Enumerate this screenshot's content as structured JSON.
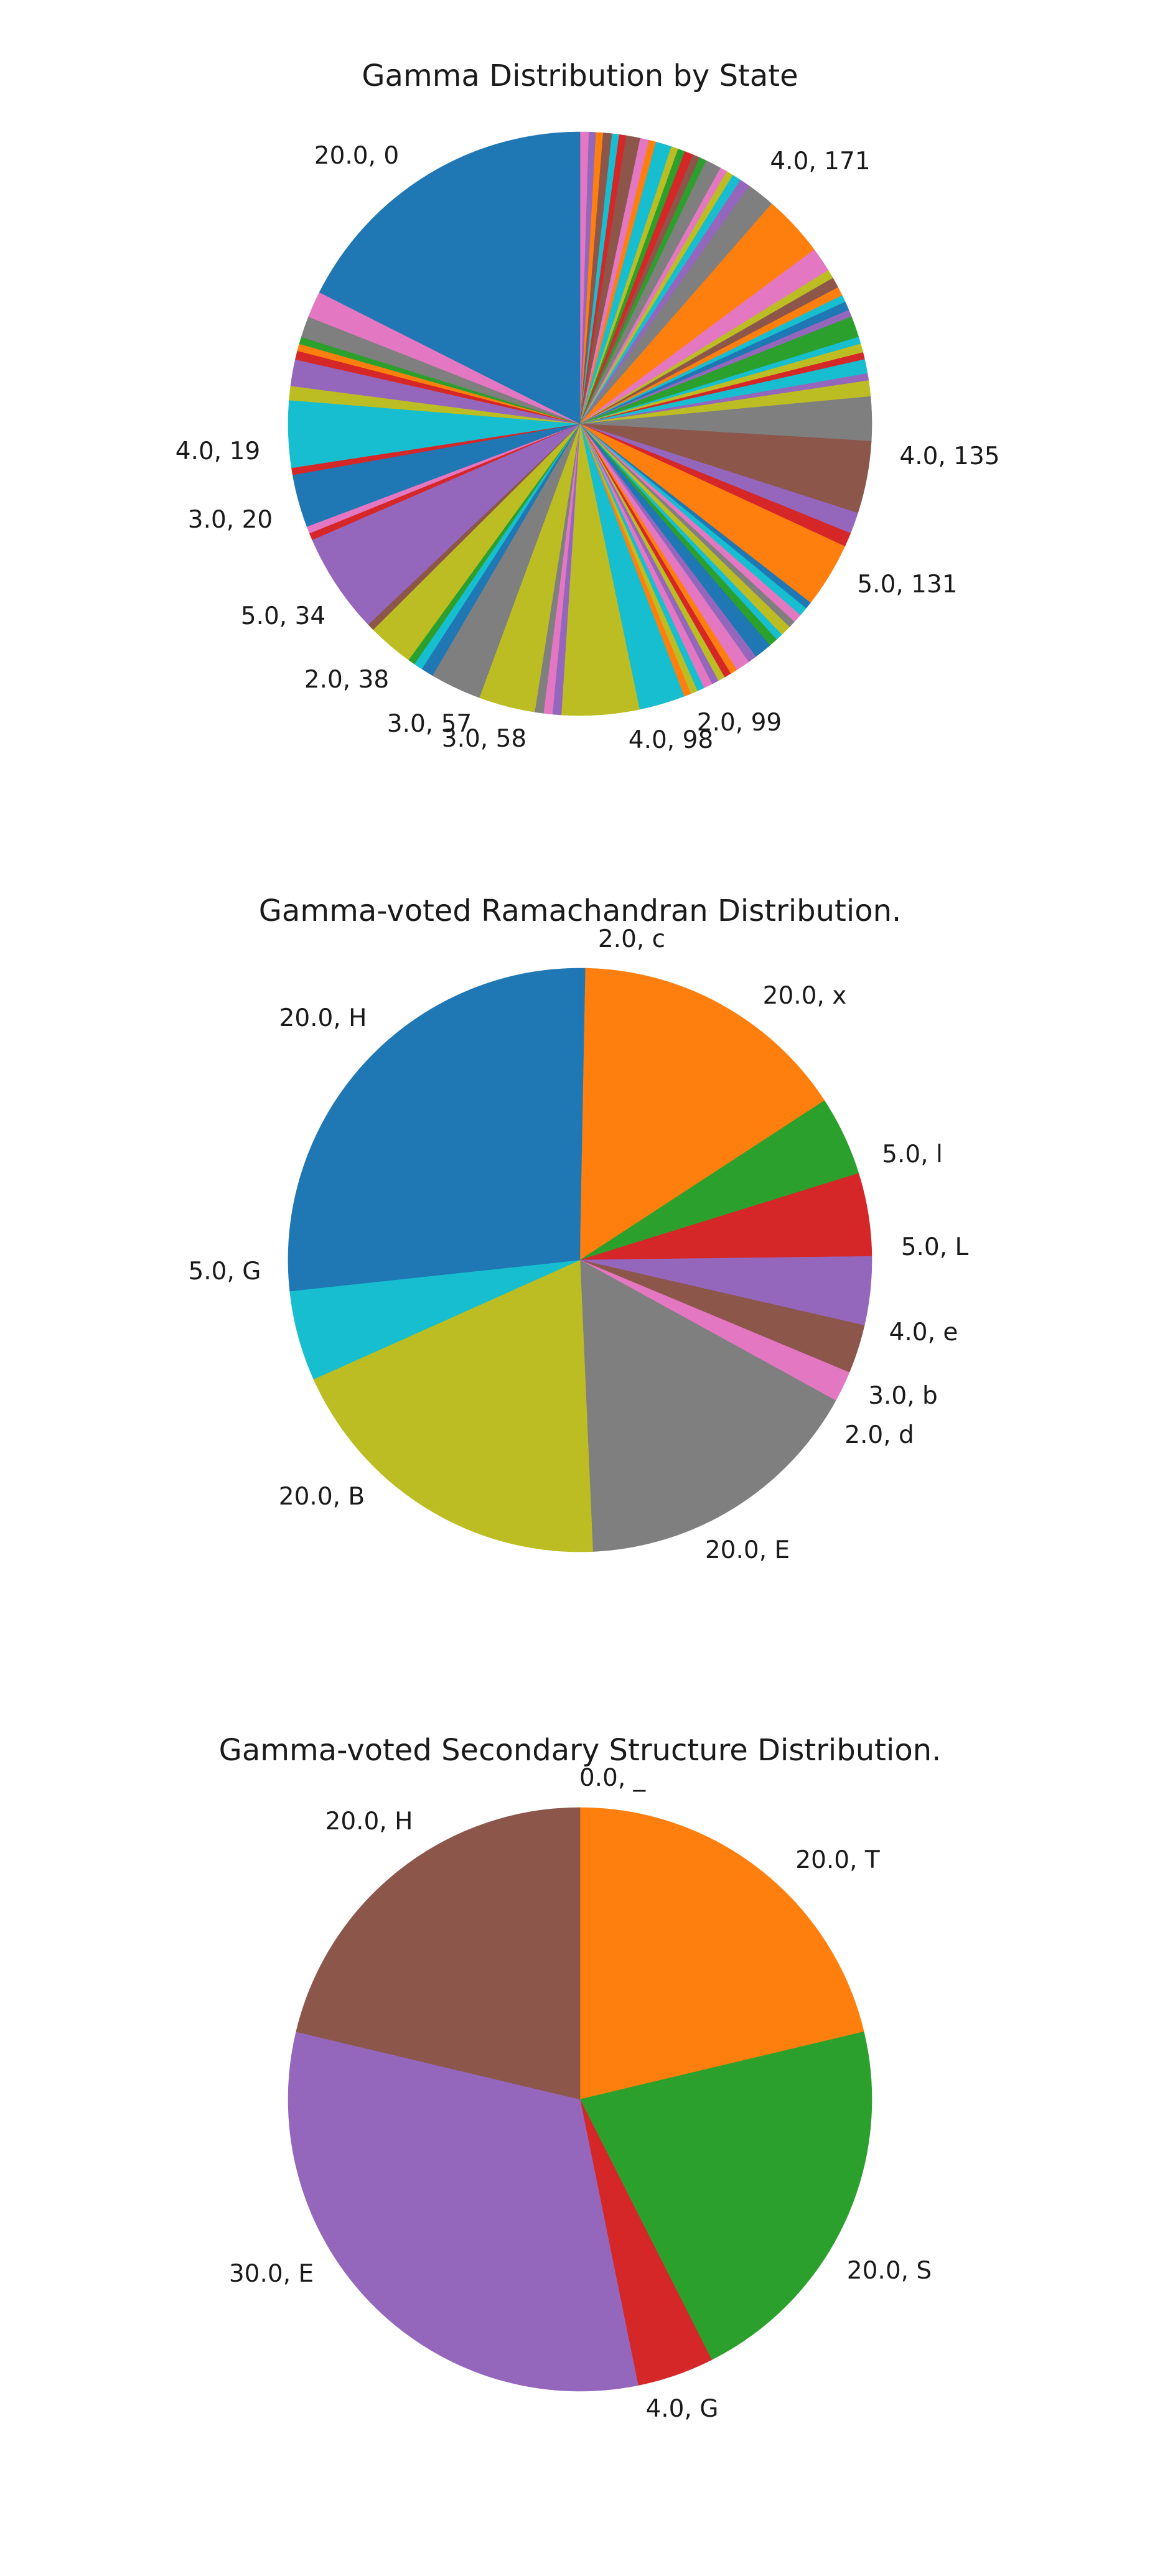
{
  "chart_data": [
    {
      "type": "pie",
      "title": "Gamma Distribution by State",
      "start_angle": 90,
      "direction": "clockwise",
      "labels": [
        "20.0, 0",
        "4.0, 171",
        "4.0, 135",
        "5.0, 131",
        "2.0, 99",
        "4.0, 98",
        "3.0, 58",
        "3.0, 57",
        "2.0, 38",
        "5.0, 34",
        "3.0, 20",
        "4.0, 19"
      ],
      "slices": [
        {
          "label": "",
          "value": 0.5
        },
        {
          "label": "",
          "value": 0.4
        },
        {
          "label": "",
          "value": 0.4
        },
        {
          "label": "",
          "value": 0.5
        },
        {
          "label": "",
          "value": 0.4
        },
        {
          "label": "",
          "value": 0.4
        },
        {
          "label": "",
          "value": 0.8
        },
        {
          "label": "",
          "value": 0.5
        },
        {
          "label": "",
          "value": 0.4
        },
        {
          "label": "",
          "value": 0.9
        },
        {
          "label": "",
          "value": 0.4
        },
        {
          "label": "",
          "value": 0.4
        },
        {
          "label": "",
          "value": 0.5
        },
        {
          "label": "",
          "value": 0.4
        },
        {
          "label": "",
          "value": 0.4
        },
        {
          "label": "",
          "value": 0.9
        },
        {
          "label": "",
          "value": 0.4
        },
        {
          "label": "",
          "value": 0.4
        },
        {
          "label": "",
          "value": 0.5
        },
        {
          "label": "",
          "value": 0.6
        },
        {
          "label": "",
          "value": 1.6
        },
        {
          "label": "4.0, 171",
          "value": 3.5
        },
        {
          "label": "",
          "value": 1.4
        },
        {
          "label": "",
          "value": 0.5
        },
        {
          "label": "",
          "value": 0.6
        },
        {
          "label": "",
          "value": 0.5
        },
        {
          "label": "",
          "value": 0.4
        },
        {
          "label": "",
          "value": 0.5
        },
        {
          "label": "",
          "value": 0.4
        },
        {
          "label": "",
          "value": 1.2
        },
        {
          "label": "",
          "value": 0.4
        },
        {
          "label": "",
          "value": 0.5
        },
        {
          "label": "",
          "value": 0.4
        },
        {
          "label": "",
          "value": 0.8
        },
        {
          "label": "",
          "value": 0.4
        },
        {
          "label": "",
          "value": 0.9
        },
        {
          "label": "",
          "value": 1.0
        },
        {
          "label": "",
          "value": 1.5
        },
        {
          "label": "4.0, 135",
          "value": 4.1
        },
        {
          "label": "",
          "value": 1.2
        },
        {
          "label": "",
          "value": 0.8
        },
        {
          "label": "5.0, 131",
          "value": 3.7
        },
        {
          "label": "",
          "value": 0.4
        },
        {
          "label": "",
          "value": 0.5
        },
        {
          "label": "",
          "value": 0.5
        },
        {
          "label": "",
          "value": 0.4
        },
        {
          "label": "",
          "value": 0.6
        },
        {
          "label": "",
          "value": 0.4
        },
        {
          "label": "",
          "value": 0.5
        },
        {
          "label": "",
          "value": 1.0
        },
        {
          "label": "",
          "value": 0.5
        },
        {
          "label": "",
          "value": 0.8
        },
        {
          "label": "",
          "value": 0.4
        },
        {
          "label": "",
          "value": 0.4
        },
        {
          "label": "",
          "value": 0.4
        },
        {
          "label": "",
          "value": 0.4
        },
        {
          "label": "2.0, 99",
          "value": 0.5
        },
        {
          "label": "",
          "value": 0.4
        },
        {
          "label": "",
          "value": 0.4
        },
        {
          "label": "",
          "value": 0.4
        },
        {
          "label": "",
          "value": 2.6
        },
        {
          "label": "4.0, 98",
          "value": 4.4
        },
        {
          "label": "",
          "value": 0.5
        },
        {
          "label": "",
          "value": 0.5
        },
        {
          "label": "",
          "value": 0.5
        },
        {
          "label": "3.0, 58",
          "value": 3.2
        },
        {
          "label": "3.0, 57",
          "value": 2.9
        },
        {
          "label": "",
          "value": 0.7
        },
        {
          "label": "",
          "value": 0.5
        },
        {
          "label": "",
          "value": 0.4
        },
        {
          "label": "2.0, 38",
          "value": 2.6
        },
        {
          "label": "",
          "value": 0.4
        },
        {
          "label": "5.0, 34",
          "value": 5.7
        },
        {
          "label": "",
          "value": 0.4
        },
        {
          "label": "",
          "value": 0.4
        },
        {
          "label": "3.0, 20",
          "value": 3.0
        },
        {
          "label": "",
          "value": 0.4
        },
        {
          "label": "4.0, 19",
          "value": 3.8
        },
        {
          "label": "",
          "value": 0.8
        },
        {
          "label": "",
          "value": 1.5
        },
        {
          "label": "",
          "value": 0.5
        },
        {
          "label": "",
          "value": 0.4
        },
        {
          "label": "",
          "value": 0.4
        },
        {
          "label": "",
          "value": 1.2
        },
        {
          "label": "",
          "value": 1.5
        },
        {
          "label": "20.0, 0",
          "value": 18.0
        }
      ]
    },
    {
      "type": "pie",
      "title": "Gamma-voted Ramachandran Distribution.",
      "start_angle": 90,
      "direction": "clockwise",
      "labels": [
        "2.0, c",
        "20.0, x",
        "5.0, l",
        "5.0, L",
        "4.0, e",
        "3.0, b",
        "2.0, d",
        "20.0, E",
        "20.0, B",
        "5.0, G",
        "20.0, H"
      ],
      "slices": [
        {
          "label": "2.0, c",
          "value": 0.3
        },
        {
          "label": "20.0, x",
          "value": 15.5
        },
        {
          "label": "5.0, l",
          "value": 4.4
        },
        {
          "label": "5.0, L",
          "value": 4.6
        },
        {
          "label": "4.0, e",
          "value": 3.8
        },
        {
          "label": "3.0, b",
          "value": 2.7
        },
        {
          "label": "2.0, d",
          "value": 1.7
        },
        {
          "label": "20.0, E",
          "value": 16.3
        },
        {
          "label": "20.0, B",
          "value": 19.0
        },
        {
          "label": "5.0, G",
          "value": 5.0
        },
        {
          "label": "20.0, H",
          "value": 26.7
        }
      ]
    },
    {
      "type": "pie",
      "title": "Gamma-voted Secondary Structure Distribution.",
      "start_angle": 90,
      "direction": "clockwise",
      "labels": [
        "0.0, _",
        "20.0, T",
        "20.0, S",
        "4.0, G",
        "30.0, E",
        "20.0, H"
      ],
      "slices": [
        {
          "label": "0.0, _",
          "value": 0.0
        },
        {
          "label": "20.0, T",
          "value": 20.0
        },
        {
          "label": "20.0, S",
          "value": 20.0
        },
        {
          "label": "4.0, G",
          "value": 4.0
        },
        {
          "label": "30.0, E",
          "value": 30.0
        },
        {
          "label": "20.0, H",
          "value": 20.0
        }
      ]
    }
  ],
  "palette": [
    "#1f77b4",
    "#ff7f0e",
    "#2ca02c",
    "#d62728",
    "#9467bd",
    "#8c564b",
    "#e377c2",
    "#7f7f7f",
    "#bcbd22",
    "#17becf"
  ],
  "state_pie_colors": [
    "#e377c2",
    "#9467bd",
    "#ff7f0e",
    "#8c564b",
    "#17becf",
    "#d62728",
    "#8c564b",
    "#e377c2",
    "#ff7f0e",
    "#17becf",
    "#bcbd22",
    "#2ca02c",
    "#d62728",
    "#8c564b",
    "#2ca02c",
    "#7f7f7f",
    "#e377c2",
    "#bcbd22",
    "#17becf",
    "#9467bd",
    "#7f7f7f",
    "#ff7f0e",
    "#e377c2",
    "#bcbd22",
    "#8c564b",
    "#ff7f0e",
    "#17becf",
    "#1f77b4",
    "#9467bd",
    "#2ca02c",
    "#17becf",
    "#bcbd22",
    "#d62728",
    "#17becf",
    "#9467bd",
    "#bcbd22",
    "#7f7f7f",
    "#7f7f7f",
    "#8c564b",
    "#9467bd",
    "#d62728",
    "#ff7f0e",
    "#1f77b4",
    "#17becf",
    "#e377c2",
    "#7f7f7f",
    "#bcbd22",
    "#17becf",
    "#2ca02c",
    "#1f77b4",
    "#9467bd",
    "#e377c2",
    "#ff7f0e",
    "#d62728",
    "#bcbd22",
    "#9467bd",
    "#e377c2",
    "#17becf",
    "#bcbd22",
    "#ff7f0e",
    "#17becf",
    "#bcbd22",
    "#9467bd",
    "#e377c2",
    "#7f7f7f",
    "#bcbd22",
    "#7f7f7f",
    "#1f77b4",
    "#17becf",
    "#2ca02c",
    "#bcbd22",
    "#8c564b",
    "#9467bd",
    "#d62728",
    "#e377c2",
    "#1f77b4",
    "#d62728",
    "#17becf",
    "#bcbd22",
    "#9467bd",
    "#d62728",
    "#ff7f0e",
    "#2ca02c",
    "#7f7f7f",
    "#e377c2",
    "#1f77b4"
  ]
}
